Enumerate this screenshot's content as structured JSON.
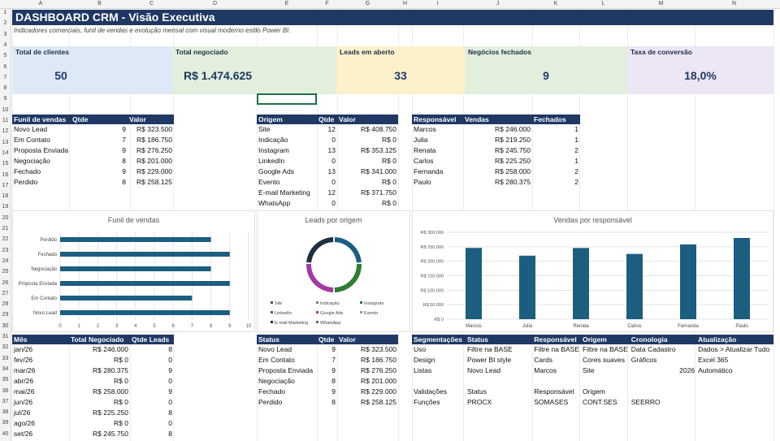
{
  "columns": [
    "A",
    "B",
    "C",
    "D",
    "E",
    "F",
    "G",
    "H",
    "I",
    "J",
    "K",
    "L",
    "M",
    "N"
  ],
  "rows": [
    "1",
    "2",
    "3",
    "4",
    "5",
    "6",
    "7",
    "8",
    "9",
    "10",
    "11",
    "12",
    "13",
    "14",
    "15",
    "16",
    "17",
    "18",
    "19",
    "20",
    "21",
    "22",
    "23",
    "24",
    "25",
    "26",
    "27",
    "28",
    "29",
    "30",
    "31",
    "32",
    "33",
    "34",
    "35",
    "36",
    "37",
    "38",
    "39",
    "40"
  ],
  "header": {
    "title": "DASHBOARD CRM - Visão Executiva",
    "subtitle": "Indicadores comerciais, funil de vendas e evolução mensal com visual moderno estilo Power BI."
  },
  "kpis": [
    {
      "label": "Total de clientes",
      "value": "50",
      "color": "#dde9f6"
    },
    {
      "label": "Total negociado",
      "value": "R$ 1.474.625",
      "color": "#e2efdc"
    },
    {
      "label": "Leads em aberto",
      "value": "33",
      "color": "#fdf1cc"
    },
    {
      "label": "Negócios fechados",
      "value": "9",
      "color": "#e2efdc"
    },
    {
      "label": "Taxa de conversão",
      "value": "18,0%",
      "color": "#ece6f5"
    }
  ],
  "funil": {
    "headers": [
      "Funil de vendas",
      "Qtde",
      "Valor"
    ],
    "rows": [
      [
        "Novo Lead",
        "9",
        "R$ 323.500"
      ],
      [
        "Em Contato",
        "7",
        "R$ 186.750"
      ],
      [
        "Proposta Enviada",
        "9",
        "R$ 276.250"
      ],
      [
        "Negociação",
        "8",
        "R$ 201.000"
      ],
      [
        "Fechado",
        "9",
        "R$ 229.000"
      ],
      [
        "Perdido",
        "8",
        "R$ 258.125"
      ]
    ]
  },
  "origem": {
    "headers": [
      "Origem",
      "Qtde",
      "Valor"
    ],
    "rows": [
      [
        "Site",
        "12",
        "R$ 408.750"
      ],
      [
        "Indicação",
        "0",
        "R$ 0"
      ],
      [
        "Instagram",
        "13",
        "R$ 353.125"
      ],
      [
        "LinkedIn",
        "0",
        "R$ 0"
      ],
      [
        "Google Ads",
        "13",
        "R$ 341.000"
      ],
      [
        "Evento",
        "0",
        "R$ 0"
      ],
      [
        "E-mail Marketing",
        "12",
        "R$ 371.750"
      ],
      [
        "WhatsApp",
        "0",
        "R$ 0"
      ]
    ]
  },
  "responsavel": {
    "headers": [
      "Responsável",
      "Vendas",
      "Fechados"
    ],
    "rows": [
      [
        "Marcos",
        "R$ 246.000",
        "1"
      ],
      [
        "Julia",
        "R$ 219.250",
        "1"
      ],
      [
        "Renata",
        "R$ 245.750",
        "2"
      ],
      [
        "Carlos",
        "R$ 225.250",
        "1"
      ],
      [
        "Fernanda",
        "R$ 258.000",
        "2"
      ],
      [
        "Paulo",
        "R$ 280.375",
        "2"
      ]
    ]
  },
  "mensal": {
    "headers": [
      "Mês",
      "Total Negociado",
      "Qtde Leads"
    ],
    "rows": [
      [
        "jan/26",
        "R$ 246.000",
        "8"
      ],
      [
        "fev/26",
        "R$ 0",
        "0"
      ],
      [
        "mar/26",
        "R$ 280.375",
        "9"
      ],
      [
        "abr/26",
        "R$ 0",
        "0"
      ],
      [
        "mai/26",
        "R$ 258.000",
        "9"
      ],
      [
        "jun/26",
        "R$ 0",
        "0"
      ],
      [
        "jul/26",
        "R$ 225.250",
        "8"
      ],
      [
        "ago/26",
        "R$ 0",
        "0"
      ],
      [
        "set/26",
        "R$ 245.750",
        "8"
      ]
    ]
  },
  "status": {
    "headers": [
      "Status",
      "Qtde",
      "Valor"
    ],
    "rows": [
      [
        "Novo Lead",
        "9",
        "R$ 323.500"
      ],
      [
        "Em Contato",
        "7",
        "R$ 186.750"
      ],
      [
        "Proposta Enviada",
        "9",
        "R$ 276.250"
      ],
      [
        "Negociação",
        "8",
        "R$ 201.000"
      ],
      [
        "Fechado",
        "9",
        "R$ 229.000"
      ],
      [
        "Perdido",
        "8",
        "R$ 258.125"
      ]
    ]
  },
  "segmentacoes": {
    "headers": [
      "Segmentações",
      "Status",
      "Responsável",
      "Origem",
      "Cronologia",
      "Atualização"
    ],
    "rows": [
      [
        "Uso",
        "Filtre na BASE",
        "Filtre na BASE",
        "Filtre na BASE",
        "Data Cadastro",
        "Dados > Atualizar Tudo"
      ],
      [
        "Design",
        "Power BI style",
        "Cards",
        "Cores suaves",
        "Gráficos",
        "Excel 365"
      ],
      [
        "Listas",
        "Novo Lead",
        "Marcos",
        "Site",
        "2026",
        "Automático"
      ],
      [
        "",
        "",
        "",
        "",
        "",
        ""
      ],
      [
        "Validações",
        "Status",
        "Responsável",
        "Origem",
        "",
        ""
      ],
      [
        "Funções",
        "PROCX",
        "SOMASES",
        "CONT.SES",
        "SEERRO",
        ""
      ]
    ]
  },
  "chart_data": [
    {
      "type": "bar",
      "orientation": "horizontal",
      "title": "Funil de vendas",
      "categories": [
        "Novo Lead",
        "Em Contato",
        "Proposta Enviada",
        "Negociação",
        "Fechado",
        "Perdido"
      ],
      "values": [
        9,
        7,
        9,
        8,
        9,
        8
      ],
      "xlim": [
        0,
        10
      ],
      "xticks": [
        "0",
        "1",
        "2",
        "3",
        "4",
        "5",
        "6",
        "7",
        "8",
        "9",
        "10"
      ],
      "grid": true,
      "color": "#1b5e80"
    },
    {
      "type": "pie",
      "donut": true,
      "title": "Leads por origem",
      "categories": [
        "Site",
        "Indicação",
        "Instagram",
        "LinkedIn",
        "Google Ads",
        "Evento",
        "E-mail Marketing",
        "WhatsApp"
      ],
      "values": [
        12,
        0,
        13,
        0,
        13,
        0,
        12,
        0
      ],
      "colors": [
        "#1b5e80",
        "#7f7f7f",
        "#2e7d32",
        "#555555",
        "#a33aa3",
        "#999999",
        "#1f3040",
        "#6a6a6a"
      ],
      "legend": "bottom"
    },
    {
      "type": "bar",
      "title": "Vendas por responsável",
      "categories": [
        "Marcos",
        "Julia",
        "Renata",
        "Carlos",
        "Fernanda",
        "Paulo"
      ],
      "values": [
        246000,
        219250,
        245750,
        225250,
        258000,
        280375
      ],
      "ylim": [
        0,
        300000
      ],
      "yticks": [
        "R$ 0",
        "R$ 50.000",
        "R$ 100.000",
        "R$ 150.000",
        "R$ 200.000",
        "R$ 250.000",
        "R$ 300.000"
      ],
      "grid": true,
      "color": "#1b5e80"
    }
  ]
}
